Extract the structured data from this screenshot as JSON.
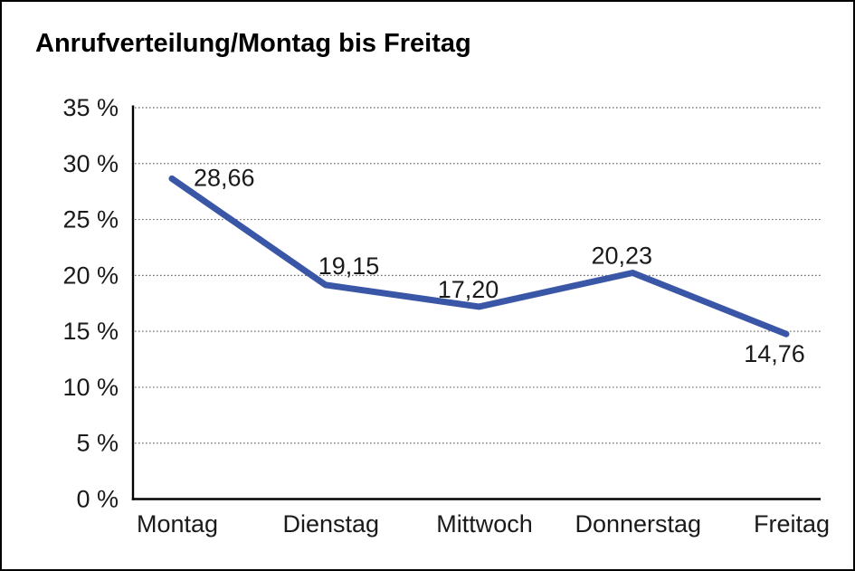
{
  "window": {
    "background": "#FFFFFF",
    "border_color": "#000000"
  },
  "chart_data": {
    "type": "line",
    "title": "Anrufverteilung/Montag bis Freitag",
    "categories": [
      "Montag",
      "Dienstag",
      "Mittwoch",
      "Donnerstag",
      "Freitag"
    ],
    "values": [
      28.66,
      19.15,
      17.2,
      20.23,
      14.76
    ],
    "value_labels": [
      "28,66",
      "19,15",
      "17,20",
      "20,23",
      "14,76"
    ],
    "xlabel": "",
    "ylabel": "",
    "ylim": [
      0,
      35
    ],
    "y_tick_step": 5,
    "y_tick_labels": [
      "0 %",
      "5 %",
      "10 %",
      "15 %",
      "20 %",
      "25 %",
      "30 %",
      "35 %"
    ],
    "grid": "horizontal-dotted",
    "legend_position": "none",
    "series_name": "Anrufverteilung",
    "line_color": "#3A56A6",
    "axis_color": "#000000",
    "grid_color": "#6E6E6E",
    "label_color": "#1A1A1A"
  }
}
